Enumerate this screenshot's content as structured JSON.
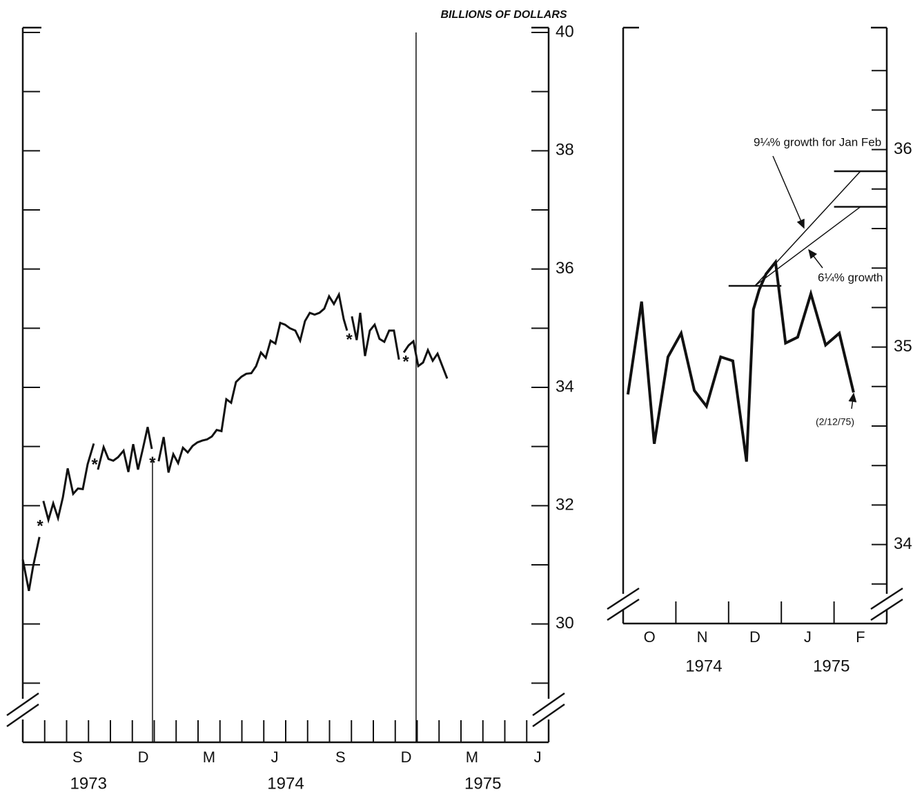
{
  "chart_data": [
    {
      "type": "line",
      "y_axis_label": "BILLIONS OF DOLLARS",
      "xlim": [
        0,
        24
      ],
      "xticks": [
        {
          "value": 2.5,
          "label": "S"
        },
        {
          "value": 5.5,
          "label": "D"
        },
        {
          "value": 8.5,
          "label": "M"
        },
        {
          "value": 11.5,
          "label": "J"
        },
        {
          "value": 14.5,
          "label": "S"
        },
        {
          "value": 17.5,
          "label": "D"
        },
        {
          "value": 20.5,
          "label": "M"
        },
        {
          "value": 23.5,
          "label": "J"
        }
      ],
      "x_minor_ticks": [
        1,
        2,
        3,
        4,
        5,
        6,
        7,
        8,
        9,
        10,
        11,
        12,
        13,
        14,
        15,
        16,
        17,
        18,
        19,
        20,
        21,
        22,
        23
      ],
      "year_labels": [
        {
          "value": 3,
          "label": "1973"
        },
        {
          "value": 12,
          "label": "1974"
        },
        {
          "value": 21,
          "label": "1975"
        }
      ],
      "ylim": [
        28,
        40
      ],
      "yticks": [
        30,
        32,
        34,
        36,
        38,
        40
      ],
      "y_minor_ticks": [
        29,
        31,
        33,
        35,
        37,
        39
      ],
      "vlines": [
        {
          "x": 5.92,
          "from": 28,
          "to": 32.78
        },
        {
          "x": 17.95,
          "from": 28,
          "to": 40
        }
      ],
      "series": [
        {
          "color": "#111111",
          "x": [
            0,
            0.28,
            0.47,
            0.76,
            null,
            0.94,
            1.17,
            1.39,
            1.61,
            1.83,
            2.05,
            2.3,
            2.52,
            2.74,
            2.96,
            3.24,
            null,
            3.43,
            3.69,
            3.91,
            4.13,
            4.35,
            4.6,
            4.82,
            5.04,
            5.26,
            5.48,
            5.7,
            5.89,
            null,
            6.2,
            6.43,
            6.65,
            6.87,
            7.09,
            7.31,
            7.53,
            7.75,
            7.97,
            8.19,
            8.41,
            8.63,
            8.85,
            9.07,
            9.29,
            9.51,
            9.73,
            9.98,
            10.2,
            10.43,
            10.65,
            10.87,
            11.09,
            11.31,
            11.53,
            11.75,
            11.97,
            12.19,
            12.44,
            12.66,
            12.88,
            13.1,
            13.32,
            13.54,
            13.76,
            13.98,
            14.2,
            14.43,
            14.65,
            14.8,
            null,
            15.02,
            15.24,
            15.4,
            15.62,
            15.84,
            16.06,
            16.28,
            16.5,
            16.72,
            16.94,
            17.17,
            null,
            17.39,
            17.61,
            17.83,
            18.05,
            18.27,
            18.49,
            18.71,
            18.93,
            19.15,
            19.37
          ],
          "values": [
            31.09,
            30.56,
            30.97,
            31.47,
            null,
            32.08,
            31.76,
            32.04,
            31.79,
            32.14,
            32.63,
            32.2,
            32.29,
            32.28,
            32.7,
            33.05,
            null,
            32.61,
            32.99,
            32.79,
            32.76,
            32.82,
            32.93,
            32.57,
            33.04,
            32.61,
            32.96,
            33.33,
            32.96,
            null,
            32.75,
            33.16,
            32.56,
            32.87,
            32.72,
            32.98,
            32.9,
            33.01,
            33.07,
            33.1,
            33.12,
            33.17,
            33.28,
            33.26,
            33.8,
            33.74,
            34.09,
            34.18,
            34.23,
            34.24,
            34.36,
            34.59,
            34.5,
            34.79,
            34.74,
            35.09,
            35.06,
            35.0,
            34.96,
            34.79,
            35.12,
            35.26,
            35.23,
            35.26,
            35.33,
            35.54,
            35.41,
            35.57,
            35.15,
            34.96,
            null,
            35.2,
            34.8,
            35.26,
            34.53,
            34.96,
            35.06,
            34.82,
            34.77,
            34.96,
            34.96,
            34.47,
            null,
            34.59,
            34.71,
            34.78,
            34.36,
            34.42,
            34.63,
            34.45,
            34.57,
            34.36,
            34.15
          ]
        }
      ],
      "break_markers": {
        "label": "*",
        "x": [
          0.79,
          3.28,
          5.92,
          14.9,
          17.48
        ],
        "y": [
          31.71,
          32.75,
          32.78,
          34.86,
          34.49
        ]
      }
    },
    {
      "type": "line",
      "xlim": [
        0,
        5
      ],
      "xticks": [
        {
          "value": 0.5,
          "label": "O"
        },
        {
          "value": 1.5,
          "label": "N"
        },
        {
          "value": 2.5,
          "label": "D"
        },
        {
          "value": 3.5,
          "label": "J"
        },
        {
          "value": 4.5,
          "label": "F"
        }
      ],
      "x_minor_ticks": [
        1,
        2,
        3,
        4
      ],
      "year_labels": [
        {
          "value": 1.53,
          "label": "1974"
        },
        {
          "value": 3.95,
          "label": "1975"
        }
      ],
      "ylim": [
        33.6,
        36.6
      ],
      "yticks": [
        34,
        35,
        36
      ],
      "y_minor_ticks": [
        33.8,
        34.2,
        34.4,
        34.6,
        34.8,
        35.2,
        35.4,
        35.6,
        35.8,
        36.2,
        36.4
      ],
      "series": [
        {
          "color": "#111111",
          "x": [
            0.09,
            0.35,
            0.59,
            0.85,
            1.1,
            1.35,
            1.58,
            1.85,
            2.08,
            2.34,
            2.47,
            2.58,
            2.71,
            2.89,
            3.08,
            3.31,
            3.56,
            3.84,
            4.1,
            4.37
          ],
          "values": [
            34.76,
            35.23,
            34.51,
            34.95,
            35.07,
            34.78,
            34.7,
            34.95,
            34.93,
            34.42,
            35.19,
            35.29,
            35.37,
            35.43,
            35.02,
            35.05,
            35.27,
            35.01,
            35.07,
            34.77
          ]
        }
      ],
      "reference_levels": [
        {
          "x0": 2,
          "x1": 3,
          "value": 35.31
        },
        {
          "x0": 4,
          "x1": 5,
          "value": 35.89
        },
        {
          "x0": 4,
          "x1": 5,
          "value": 35.71
        }
      ],
      "growth_lines": [
        {
          "label": "9¼% growth for Jan Feb",
          "x0": 2.5,
          "y0": 35.31,
          "x1": 4.5,
          "y1": 35.89
        },
        {
          "label": "6¼% growth",
          "x0": 2.5,
          "y0": 35.31,
          "x1": 4.5,
          "y1": 35.71
        }
      ],
      "note": "(2/12/75)"
    }
  ]
}
